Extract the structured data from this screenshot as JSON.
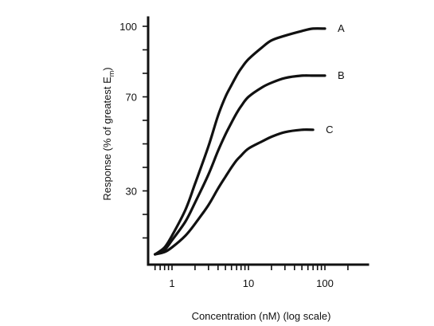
{
  "chart_data": {
    "type": "line",
    "xlabel": "Concentration (nM) (log scale)",
    "ylabel_main": "Response (% of greatest E",
    "ylabel_sub": "m",
    "ylabel_close": ")",
    "x_scale": "log",
    "xlim": [
      0.5,
      250
    ],
    "ylim": [
      0,
      100
    ],
    "x_ticks": [
      1,
      10,
      100
    ],
    "x_tick_labels": [
      "1",
      "10",
      "100"
    ],
    "y_ticks": [
      30,
      70,
      100
    ],
    "y_tick_labels": [
      "30",
      "70",
      "100"
    ],
    "grid": false,
    "legend": "labels at line ends",
    "series": [
      {
        "name": "A",
        "x": [
          0.6,
          0.8,
          1,
          1.5,
          2,
          3,
          4,
          5,
          6,
          7,
          8,
          10,
          15,
          20,
          30,
          50,
          70,
          100
        ],
        "y": [
          3,
          6,
          11,
          22,
          33,
          49,
          62,
          70,
          75,
          79,
          82,
          86,
          91,
          94,
          96,
          98,
          99,
          99
        ]
      },
      {
        "name": "B",
        "x": [
          0.6,
          0.8,
          1,
          1.5,
          2,
          3,
          4,
          5,
          6,
          7,
          8,
          10,
          15,
          20,
          30,
          50,
          70,
          100
        ],
        "y": [
          3,
          5,
          9,
          17,
          25,
          37,
          47,
          54,
          59,
          63,
          66,
          70,
          74,
          76,
          78,
          79,
          79,
          79
        ]
      },
      {
        "name": "C",
        "x": [
          0.6,
          0.8,
          1,
          1.5,
          2,
          3,
          4,
          5,
          6,
          7,
          8,
          10,
          15,
          20,
          30,
          50,
          70
        ],
        "y": [
          3,
          4,
          6,
          11,
          16,
          24,
          31,
          36,
          40,
          43,
          45,
          48,
          51,
          53,
          55,
          56,
          56
        ]
      }
    ]
  }
}
